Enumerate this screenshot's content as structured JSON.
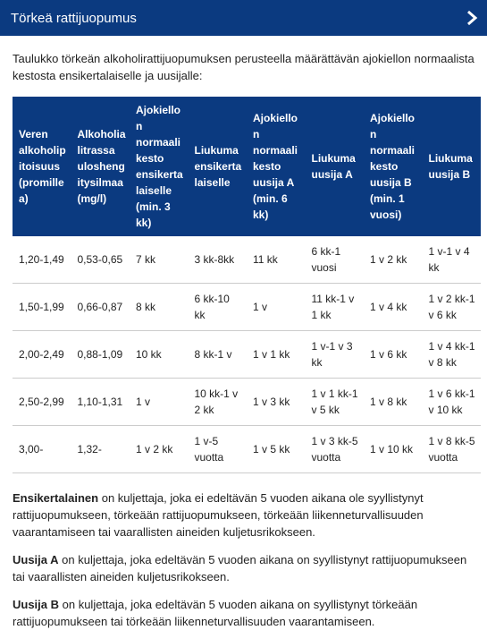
{
  "header": {
    "title": "Törkeä rattijuopumus"
  },
  "intro": "Taulukko törkeän alkoholirattijuopumuksen perusteella määrättävän ajokiellon normaalista kestosta ensikertalaiselle ja uusijalle:",
  "table": {
    "headers": [
      "Veren alkoholipitoisuus (promillea)",
      "Alkoholia litrassa uloshengitysilmaa (mg/l)",
      "Ajokiellon normaali kesto ensikertalaiselle (min. 3 kk)",
      "Liukuma ensikertalaiselle",
      "Ajokiellon normaali kesto uusija A (min. 6 kk)",
      "Liukuma uusija A",
      "Ajokiellon normaali kesto uusija B (min. 1 vuosi)",
      "Liukuma uusija B"
    ],
    "rows": [
      [
        "1,20-1,49",
        "0,53-0,65",
        "7 kk",
        "3 kk-8kk",
        "11 kk",
        "6 kk-1 vuosi",
        "1 v 2 kk",
        "1 v-1 v 4 kk"
      ],
      [
        "1,50-1,99",
        "0,66-0,87",
        "8 kk",
        "6 kk-10 kk",
        "1 v",
        "11 kk-1 v 1 kk",
        "1 v 4 kk",
        "1 v 2 kk-1 v 6 kk"
      ],
      [
        "2,00-2,49",
        "0,88-1,09",
        "10 kk",
        "8 kk-1 v",
        "1 v 1 kk",
        "1 v-1 v 3 kk",
        "1 v 6 kk",
        "1 v 4 kk-1 v 8 kk"
      ],
      [
        "2,50-2,99",
        "1,10-1,31",
        "1 v",
        "10 kk-1 v 2 kk",
        "1 v 3 kk",
        "1 v 1 kk-1 v 5 kk",
        "1 v 8 kk",
        "1 v 6 kk-1 v 10 kk"
      ],
      [
        "3,00-",
        "1,32-",
        "1 v 2 kk",
        "1 v-5 vuotta",
        "1 v 5 kk",
        "1 v 3 kk-5 vuotta",
        "1 v 10 kk",
        "1 v 8 kk-5 vuotta"
      ]
    ]
  },
  "definitions": [
    {
      "term": "Ensikertalainen",
      "text": " on kuljettaja, joka ei edeltävän 5 vuoden aikana ole syyllistynyt rattijuopumukseen, törkeään rattijuopumukseen, törkeään liikenneturvallisuuden vaarantamiseen tai vaarallisten aineiden kuljetusrikokseen."
    },
    {
      "term": "Uusija A",
      "text": " on kuljettaja, joka edeltävän 5 vuoden aikana on syyllistynyt rattijuopumukseen tai vaarallisten aineiden kuljetusrikokseen."
    },
    {
      "term": "Uusija B",
      "text": " on kuljettaja, joka edeltävän 5 vuoden aikana on syyllistynyt törkeään rattijuopumukseen tai törkeään liikenneturvallisuuden vaarantamiseen."
    }
  ]
}
